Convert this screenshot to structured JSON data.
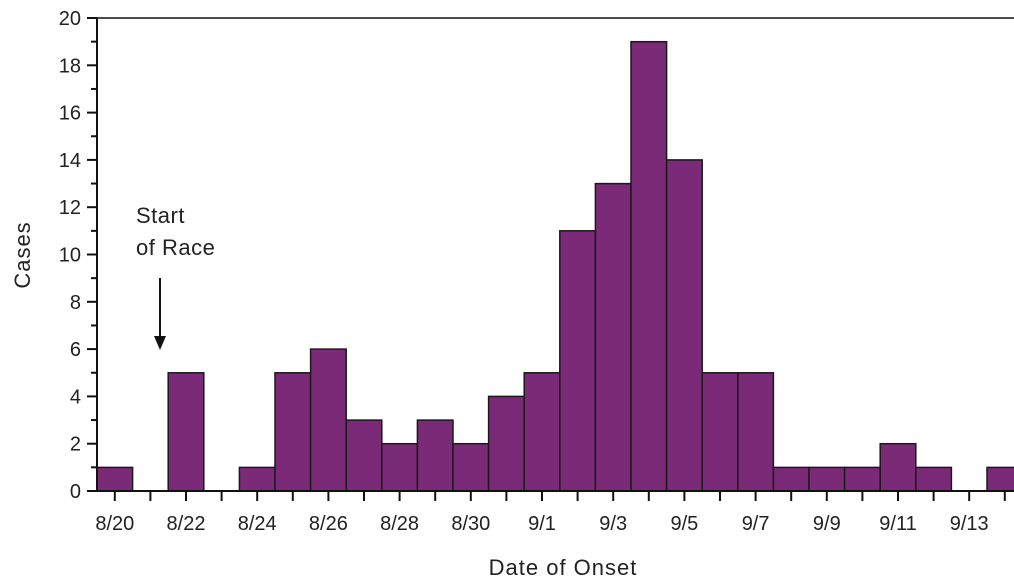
{
  "chart_data": {
    "type": "bar",
    "title": "",
    "xlabel": "Date of Onset",
    "ylabel": "Cases",
    "ylim": [
      0,
      20
    ],
    "y_ticks": [
      "0",
      "2",
      "4",
      "6",
      "8",
      "10",
      "12",
      "14",
      "16",
      "18",
      "20"
    ],
    "x_tick_labels": [
      "8/20",
      "8/22",
      "8/24",
      "8/26",
      "8/28",
      "8/30",
      "9/1",
      "9/3",
      "9/5",
      "9/7",
      "9/9",
      "9/11",
      "9/13"
    ],
    "categories": [
      "8/20",
      "8/21",
      "8/22",
      "8/23",
      "8/24",
      "8/25",
      "8/26",
      "8/27",
      "8/28",
      "8/29",
      "8/30",
      "8/31",
      "9/1",
      "9/2",
      "9/3",
      "9/4",
      "9/5",
      "9/6",
      "9/7",
      "9/8",
      "9/9",
      "9/10",
      "9/11",
      "9/12",
      "9/13",
      "9/14"
    ],
    "values": [
      1,
      0,
      5,
      0,
      1,
      5,
      6,
      3,
      2,
      3,
      2,
      4,
      5,
      11,
      13,
      19,
      14,
      5,
      5,
      1,
      1,
      1,
      2,
      1,
      0,
      1
    ],
    "bar_color": "#7b2a78",
    "grid": false,
    "annotation": {
      "line1": "Start",
      "line2": "of Race",
      "points_to": "8/22"
    }
  }
}
